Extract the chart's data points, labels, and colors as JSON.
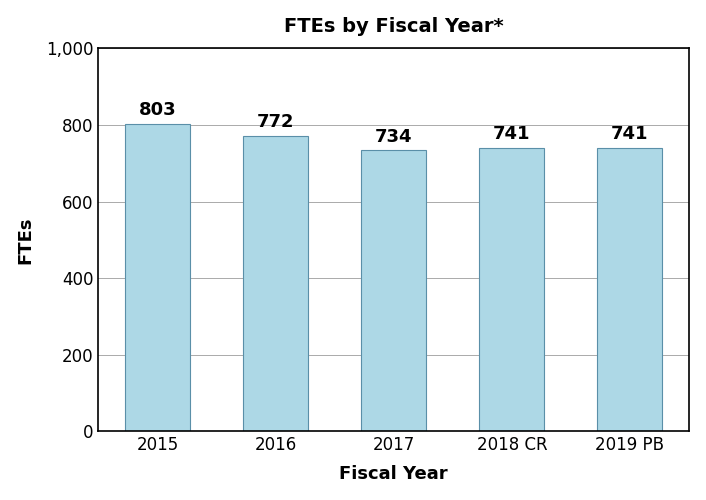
{
  "title": "FTEs by Fiscal Year*",
  "xlabel": "Fiscal Year",
  "ylabel": "FTEs",
  "categories": [
    "2015",
    "2016",
    "2017",
    "2018 CR",
    "2019 PB"
  ],
  "values": [
    803,
    772,
    734,
    741,
    741
  ],
  "bar_color": "#add8e6",
  "bar_edgecolor": "#5a8fa8",
  "ylim": [
    0,
    1000
  ],
  "yticks": [
    0,
    200,
    400,
    600,
    800,
    1000
  ],
  "ytick_labels": [
    "0",
    "200",
    "400",
    "600",
    "800",
    "1,000"
  ],
  "title_fontsize": 14,
  "axis_label_fontsize": 13,
  "tick_fontsize": 12,
  "value_label_fontsize": 13,
  "background_color": "#ffffff",
  "grid_color": "#aaaaaa",
  "border_color": "#000000"
}
